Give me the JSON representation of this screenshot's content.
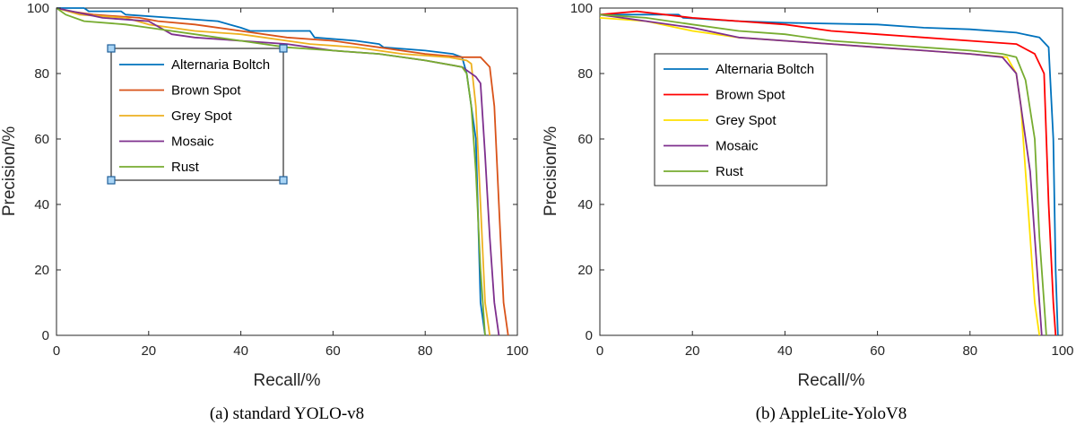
{
  "chart_data": [
    {
      "type": "line",
      "caption": "(a) standard YOLO-v8",
      "xlabel": "Recall/%",
      "ylabel": "Precision/%",
      "xlim": [
        0,
        100
      ],
      "ylim": [
        0,
        100
      ],
      "xticks": [
        0,
        20,
        40,
        60,
        80,
        100
      ],
      "yticks": [
        0,
        20,
        40,
        60,
        80,
        100
      ],
      "grid": false,
      "legend": "upper-left",
      "legend_selected": true,
      "series": [
        {
          "name": "Alternaria Boltch",
          "color": "#0072BD",
          "x": [
            0,
            6,
            7,
            14,
            15,
            25,
            35,
            40,
            42,
            50,
            55,
            56,
            65,
            70,
            71,
            80,
            86,
            88,
            89,
            91,
            92,
            93
          ],
          "y": [
            100,
            100,
            99,
            99,
            98,
            97,
            96,
            94,
            93,
            93,
            93,
            91,
            90,
            89,
            88,
            87,
            86,
            85,
            80,
            60,
            10,
            0
          ]
        },
        {
          "name": "Brown Spot",
          "color": "#D95319",
          "x": [
            0,
            3,
            8,
            18,
            22,
            30,
            40,
            50,
            60,
            70,
            80,
            88,
            92,
            94,
            95,
            96,
            97,
            98
          ],
          "y": [
            100,
            99,
            98,
            97,
            96,
            95,
            93,
            91,
            90,
            88,
            86,
            85,
            85,
            82,
            70,
            40,
            10,
            0
          ]
        },
        {
          "name": "Grey Spot",
          "color": "#EDB120",
          "x": [
            0,
            5,
            15,
            20,
            30,
            40,
            45,
            55,
            65,
            75,
            85,
            89,
            90,
            91,
            92,
            93,
            94
          ],
          "y": [
            100,
            98,
            97,
            95,
            93,
            92,
            91,
            89,
            88,
            86,
            85,
            84,
            83,
            70,
            40,
            10,
            0
          ]
        },
        {
          "name": "Mosaic",
          "color": "#7E2F8E",
          "x": [
            0,
            10,
            20,
            25,
            30,
            40,
            50,
            60,
            70,
            80,
            88,
            91,
            92,
            93,
            94,
            95,
            96
          ],
          "y": [
            100,
            97,
            96,
            92,
            91,
            90,
            89,
            87,
            86,
            84,
            82,
            79,
            77,
            55,
            30,
            10,
            0
          ]
        },
        {
          "name": "Rust",
          "color": "#77AC30",
          "x": [
            0,
            2,
            6,
            15,
            20,
            30,
            40,
            50,
            60,
            70,
            80,
            88,
            89,
            90,
            91,
            92,
            93
          ],
          "y": [
            100,
            98,
            96,
            95,
            94,
            92,
            90,
            88,
            87,
            86,
            84,
            82,
            80,
            70,
            50,
            20,
            0
          ]
        }
      ]
    },
    {
      "type": "line",
      "caption": "(b) AppleLite-YoloV8",
      "xlabel": "Recall/%",
      "ylabel": "Precision/%",
      "xlim": [
        0,
        100
      ],
      "ylim": [
        0,
        100
      ],
      "xticks": [
        0,
        20,
        40,
        60,
        80,
        100
      ],
      "yticks": [
        0,
        20,
        40,
        60,
        80,
        100
      ],
      "grid": false,
      "legend": "upper-left",
      "legend_selected": false,
      "series": [
        {
          "name": "Alternaria Boltch",
          "color": "#0072BD",
          "x": [
            0,
            10,
            17,
            18,
            30,
            40,
            60,
            70,
            80,
            90,
            95,
            97,
            98,
            98.5,
            99
          ],
          "y": [
            98,
            98,
            98,
            97,
            96,
            95.5,
            95,
            94,
            93.5,
            92.5,
            91,
            88,
            60,
            20,
            0
          ]
        },
        {
          "name": "Brown Spot",
          "color": "#FF0000",
          "x": [
            0,
            8,
            20,
            30,
            40,
            50,
            60,
            70,
            80,
            90,
            94,
            96,
            97,
            98,
            98.5
          ],
          "y": [
            98,
            99,
            97,
            96,
            95,
            93,
            92,
            91,
            90,
            89,
            86,
            80,
            40,
            10,
            0
          ]
        },
        {
          "name": "Grey Spot",
          "color": "#FFE000",
          "x": [
            0,
            10,
            20,
            30,
            40,
            50,
            60,
            70,
            80,
            88,
            90,
            91,
            92,
            93,
            94,
            95
          ],
          "y": [
            97,
            96,
            93,
            91,
            90,
            89,
            88,
            87,
            86,
            85,
            80,
            70,
            50,
            30,
            10,
            0
          ]
        },
        {
          "name": "Mosaic",
          "color": "#7E2F8E",
          "x": [
            0,
            10,
            20,
            30,
            40,
            50,
            60,
            70,
            80,
            87,
            90,
            91,
            93,
            94,
            95,
            95.5
          ],
          "y": [
            98,
            96,
            94,
            91,
            90,
            89,
            88,
            87,
            86,
            85,
            80,
            70,
            50,
            30,
            10,
            0
          ]
        },
        {
          "name": "Rust",
          "color": "#77AC30",
          "x": [
            0,
            10,
            20,
            30,
            40,
            50,
            60,
            70,
            80,
            87,
            90,
            92,
            94,
            95,
            96,
            96.5
          ],
          "y": [
            98,
            97,
            95,
            93,
            92,
            90,
            89,
            88,
            87,
            86,
            85,
            78,
            60,
            30,
            10,
            0
          ]
        }
      ]
    }
  ]
}
